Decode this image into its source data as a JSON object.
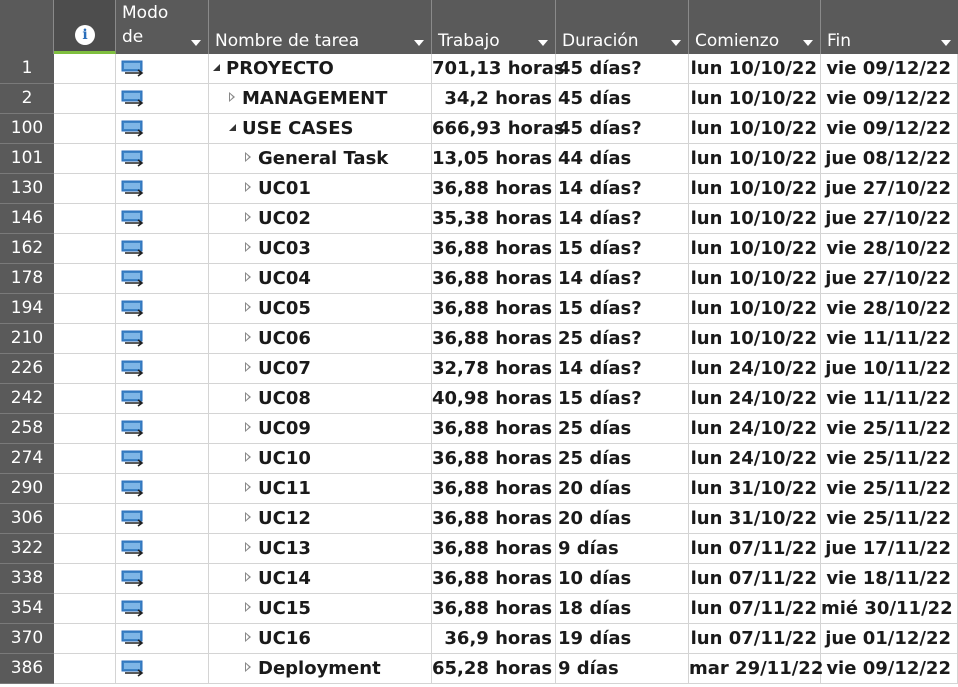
{
  "columns": {
    "mode_line1": "Modo",
    "mode_line2": "de",
    "name": "Nombre de tarea",
    "work": "Trabajo",
    "duration": "Duración",
    "start": "Comienzo",
    "end": "Fin"
  },
  "info_icon": "info-icon",
  "mode_icon": "auto-scheduled-task-icon",
  "colors": {
    "header_bg": "#5a5a5a",
    "info_underline": "#7fbf3f",
    "icon_blue": "#2a6ebb"
  },
  "rows": [
    {
      "id": "1",
      "name": "PROYECTO",
      "level": 0,
      "toggle": "expanded",
      "work": "701,13 horas",
      "duration": "45 días?",
      "start": "lun 10/10/22",
      "end": "vie 09/12/22"
    },
    {
      "id": "2",
      "name": "MANAGEMENT",
      "level": 1,
      "toggle": "collapsed",
      "work": "34,2 horas",
      "duration": "45 días",
      "start": "lun 10/10/22",
      "end": "vie 09/12/22"
    },
    {
      "id": "100",
      "name": "USE CASES",
      "level": 1,
      "toggle": "expanded",
      "work": "666,93 horas",
      "duration": "45 días?",
      "start": "lun 10/10/22",
      "end": "vie 09/12/22"
    },
    {
      "id": "101",
      "name": "General Task",
      "level": 2,
      "toggle": "collapsed",
      "work": "13,05 horas",
      "duration": "44 días",
      "start": "lun 10/10/22",
      "end": "jue 08/12/22"
    },
    {
      "id": "130",
      "name": "UC01",
      "level": 2,
      "toggle": "collapsed",
      "work": "36,88 horas",
      "duration": "14 días?",
      "start": "lun 10/10/22",
      "end": "jue 27/10/22"
    },
    {
      "id": "146",
      "name": "UC02",
      "level": 2,
      "toggle": "collapsed",
      "work": "35,38 horas",
      "duration": "14 días?",
      "start": "lun 10/10/22",
      "end": "jue 27/10/22"
    },
    {
      "id": "162",
      "name": "UC03",
      "level": 2,
      "toggle": "collapsed",
      "work": "36,88 horas",
      "duration": "15 días?",
      "start": "lun 10/10/22",
      "end": "vie 28/10/22"
    },
    {
      "id": "178",
      "name": "UC04",
      "level": 2,
      "toggle": "collapsed",
      "work": "36,88 horas",
      "duration": "14 días?",
      "start": "lun 10/10/22",
      "end": "jue 27/10/22"
    },
    {
      "id": "194",
      "name": "UC05",
      "level": 2,
      "toggle": "collapsed",
      "work": "36,88 horas",
      "duration": "15 días?",
      "start": "lun 10/10/22",
      "end": "vie 28/10/22"
    },
    {
      "id": "210",
      "name": "UC06",
      "level": 2,
      "toggle": "collapsed",
      "work": "36,88 horas",
      "duration": "25 días?",
      "start": "lun 10/10/22",
      "end": "vie 11/11/22"
    },
    {
      "id": "226",
      "name": "UC07",
      "level": 2,
      "toggle": "collapsed",
      "work": "32,78 horas",
      "duration": "14 días?",
      "start": "lun 24/10/22",
      "end": "jue 10/11/22"
    },
    {
      "id": "242",
      "name": "UC08",
      "level": 2,
      "toggle": "collapsed",
      "work": "40,98 horas",
      "duration": "15 días?",
      "start": "lun 24/10/22",
      "end": "vie 11/11/22"
    },
    {
      "id": "258",
      "name": "UC09",
      "level": 2,
      "toggle": "collapsed",
      "work": "36,88 horas",
      "duration": "25 días",
      "start": "lun 24/10/22",
      "end": "vie 25/11/22"
    },
    {
      "id": "274",
      "name": "UC10",
      "level": 2,
      "toggle": "collapsed",
      "work": "36,88 horas",
      "duration": "25 días",
      "start": "lun 24/10/22",
      "end": "vie 25/11/22"
    },
    {
      "id": "290",
      "name": "UC11",
      "level": 2,
      "toggle": "collapsed",
      "work": "36,88 horas",
      "duration": "20 días",
      "start": "lun 31/10/22",
      "end": "vie 25/11/22"
    },
    {
      "id": "306",
      "name": "UC12",
      "level": 2,
      "toggle": "collapsed",
      "work": "36,88 horas",
      "duration": "20 días",
      "start": "lun 31/10/22",
      "end": "vie 25/11/22"
    },
    {
      "id": "322",
      "name": "UC13",
      "level": 2,
      "toggle": "collapsed",
      "work": "36,88 horas",
      "duration": "9 días",
      "start": "lun 07/11/22",
      "end": "jue 17/11/22"
    },
    {
      "id": "338",
      "name": "UC14",
      "level": 2,
      "toggle": "collapsed",
      "work": "36,88 horas",
      "duration": "10 días",
      "start": "lun 07/11/22",
      "end": "vie 18/11/22"
    },
    {
      "id": "354",
      "name": "UC15",
      "level": 2,
      "toggle": "collapsed",
      "work": "36,88 horas",
      "duration": "18 días",
      "start": "lun 07/11/22",
      "end": "mié 30/11/22"
    },
    {
      "id": "370",
      "name": "UC16",
      "level": 2,
      "toggle": "collapsed",
      "work": "36,9 horas",
      "duration": "19 días",
      "start": "lun 07/11/22",
      "end": "jue 01/12/22"
    },
    {
      "id": "386",
      "name": "Deployment",
      "level": 2,
      "toggle": "collapsed",
      "work": "65,28 horas",
      "duration": "9 días",
      "start": "mar 29/11/22",
      "end": "vie 09/12/22"
    }
  ]
}
